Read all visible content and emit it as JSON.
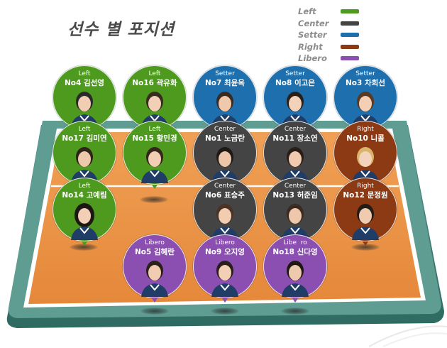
{
  "title": "선수 별 포지션",
  "legend": [
    {
      "label": "Left",
      "color": "#4e9a1f"
    },
    {
      "label": "Center",
      "color": "#444444"
    },
    {
      "label": "Setter",
      "color": "#1e6fae"
    },
    {
      "label": "Right",
      "color": "#8c3a14"
    },
    {
      "label": "Libero",
      "color": "#8a4fb0"
    }
  ],
  "players": [
    {
      "position": "Left",
      "name": "No4 김선영"
    },
    {
      "position": "Left",
      "name": "No16 곽유화"
    },
    {
      "position": "Setter",
      "name": "No7 최윤옥"
    },
    {
      "position": "Setter",
      "name": "No8 이고은"
    },
    {
      "position": "Setter",
      "name": "No3 차희선"
    },
    {
      "position": "Left",
      "name": "No17 김미연"
    },
    {
      "position": "Left",
      "name": "No15 황민경"
    },
    {
      "position": "Center",
      "name": "No1 노금란"
    },
    {
      "position": "Center",
      "name": "No11 장소연"
    },
    {
      "position": "Right",
      "name": "No10 니콜"
    },
    {
      "position": "Left",
      "name": "No14 고예림"
    },
    {
      "position": "Center",
      "name": "No6 표승주"
    },
    {
      "position": "Center",
      "name": "No13 허준임"
    },
    {
      "position": "Right",
      "name": "No12 문정원"
    },
    {
      "position": "Libero",
      "name": "No5 김혜란"
    },
    {
      "position": "Libero",
      "name": "No9 오지영"
    },
    {
      "position": "Libe  ro",
      "name": "No18 신다영"
    }
  ]
}
